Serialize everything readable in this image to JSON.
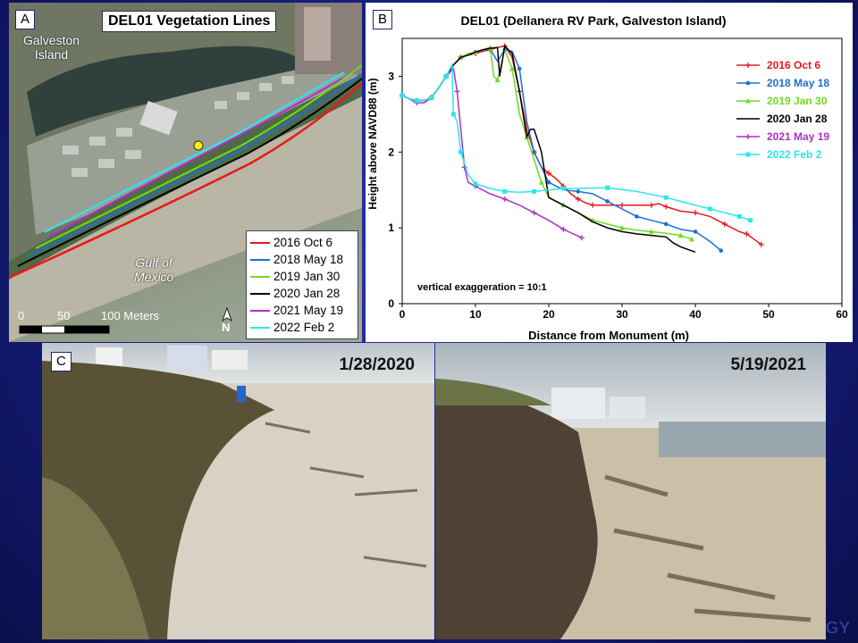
{
  "panel_a": {
    "tag": "A",
    "title": "DEL01 Vegetation Lines",
    "labels": {
      "city": "Galveston",
      "island": "Island",
      "gulf": "Gulf of",
      "mexico": "Mexico"
    },
    "scale": {
      "zero": "0",
      "fifty": "50",
      "hundred": "100 Meters"
    },
    "north": "N",
    "legend": [
      {
        "label": "2016 Oct 6",
        "color": "#e8191b"
      },
      {
        "label": "2018 May 18",
        "color": "#1f6fd1"
      },
      {
        "label": "2019 Jan 30",
        "color": "#6edc22"
      },
      {
        "label": "2020 Jan 28",
        "color": "#000000"
      },
      {
        "label": "2021 May 19",
        "color": "#b12fc9"
      },
      {
        "label": "2022 Feb 2",
        "color": "#2ce6f0"
      }
    ]
  },
  "chart_data": {
    "type": "line",
    "tag": "B",
    "title": "DEL01 (Dellanera RV Park, Galveston Island)",
    "xlabel": "Distance from Monument (m)",
    "ylabel": "Height above NAVD88 (m)",
    "xlim": [
      0,
      60
    ],
    "ylim": [
      0,
      3.5
    ],
    "xticks": [
      0,
      10,
      20,
      30,
      40,
      50,
      60
    ],
    "yticks": [
      0,
      1,
      2,
      3
    ],
    "annotation": "vertical exaggeration = 10:1",
    "legend_position": "top-right",
    "series": [
      {
        "name": "2016 Oct 6",
        "color": "#e8191b",
        "marker": "plus",
        "points": [
          [
            0,
            2.75
          ],
          [
            1,
            2.7
          ],
          [
            2,
            2.68
          ],
          [
            3,
            2.68
          ],
          [
            4,
            2.72
          ],
          [
            5,
            2.85
          ],
          [
            6,
            3.0
          ],
          [
            7,
            3.15
          ],
          [
            8,
            3.25
          ],
          [
            9,
            3.28
          ],
          [
            10,
            3.3
          ],
          [
            11,
            3.33
          ],
          [
            12,
            3.35
          ],
          [
            13,
            3.38
          ],
          [
            14,
            3.4
          ],
          [
            15,
            3.25
          ],
          [
            16,
            2.8
          ],
          [
            17,
            2.3
          ],
          [
            18,
            2.0
          ],
          [
            19,
            1.8
          ],
          [
            20,
            1.72
          ],
          [
            21,
            1.65
          ],
          [
            22,
            1.55
          ],
          [
            23,
            1.45
          ],
          [
            24,
            1.38
          ],
          [
            25,
            1.33
          ],
          [
            26,
            1.3
          ],
          [
            28,
            1.3
          ],
          [
            30,
            1.3
          ],
          [
            32,
            1.3
          ],
          [
            34,
            1.3
          ],
          [
            35,
            1.32
          ],
          [
            36,
            1.28
          ],
          [
            38,
            1.22
          ],
          [
            40,
            1.2
          ],
          [
            42,
            1.15
          ],
          [
            44,
            1.05
          ],
          [
            46,
            0.95
          ],
          [
            47,
            0.92
          ],
          [
            49,
            0.78
          ]
        ]
      },
      {
        "name": "2018 May 18",
        "color": "#1f6fd1",
        "marker": "circle",
        "points": [
          [
            0,
            2.75
          ],
          [
            1,
            2.7
          ],
          [
            2,
            2.68
          ],
          [
            3,
            2.68
          ],
          [
            4,
            2.72
          ],
          [
            5,
            2.85
          ],
          [
            6,
            3.0
          ],
          [
            7,
            3.15
          ],
          [
            8,
            3.25
          ],
          [
            9,
            3.28
          ],
          [
            10,
            3.32
          ],
          [
            11,
            3.35
          ],
          [
            12,
            3.36
          ],
          [
            13,
            3.2
          ],
          [
            14,
            3.35
          ],
          [
            15,
            3.33
          ],
          [
            16,
            3.1
          ],
          [
            17,
            2.4
          ],
          [
            18,
            2.0
          ],
          [
            19,
            1.8
          ],
          [
            20,
            1.6
          ],
          [
            22,
            1.5
          ],
          [
            24,
            1.48
          ],
          [
            26,
            1.45
          ],
          [
            28,
            1.35
          ],
          [
            30,
            1.25
          ],
          [
            32,
            1.15
          ],
          [
            34,
            1.1
          ],
          [
            36,
            1.05
          ],
          [
            38,
            0.98
          ],
          [
            40,
            0.95
          ],
          [
            42,
            0.82
          ],
          [
            43.5,
            0.7
          ]
        ]
      },
      {
        "name": "2019 Jan 30",
        "color": "#6edc22",
        "marker": "triangle",
        "points": [
          [
            0,
            2.75
          ],
          [
            1,
            2.7
          ],
          [
            2,
            2.68
          ],
          [
            3,
            2.68
          ],
          [
            4,
            2.72
          ],
          [
            5,
            2.85
          ],
          [
            6,
            3.0
          ],
          [
            7,
            3.15
          ],
          [
            8,
            3.25
          ],
          [
            9,
            3.3
          ],
          [
            10,
            3.32
          ],
          [
            11,
            3.35
          ],
          [
            12,
            3.38
          ],
          [
            12.5,
            3.0
          ],
          [
            13,
            2.95
          ],
          [
            14,
            3.35
          ],
          [
            15,
            3.1
          ],
          [
            16,
            2.5
          ],
          [
            17,
            2.2
          ],
          [
            18,
            1.9
          ],
          [
            19,
            1.6
          ],
          [
            20,
            1.4
          ],
          [
            22,
            1.3
          ],
          [
            24,
            1.2
          ],
          [
            26,
            1.1
          ],
          [
            28,
            1.05
          ],
          [
            30,
            1.0
          ],
          [
            32,
            0.97
          ],
          [
            34,
            0.95
          ],
          [
            36,
            0.93
          ],
          [
            38,
            0.9
          ],
          [
            39.5,
            0.85
          ]
        ]
      },
      {
        "name": "2020 Jan 28",
        "color": "#000000",
        "marker": "none",
        "points": [
          [
            0,
            2.75
          ],
          [
            1,
            2.7
          ],
          [
            2,
            2.68
          ],
          [
            3,
            2.68
          ],
          [
            4,
            2.72
          ],
          [
            5,
            2.85
          ],
          [
            6,
            3.0
          ],
          [
            7,
            3.15
          ],
          [
            8,
            3.25
          ],
          [
            9,
            3.28
          ],
          [
            10,
            3.32
          ],
          [
            11,
            3.35
          ],
          [
            12,
            3.37
          ],
          [
            13,
            3.38
          ],
          [
            13.3,
            3.0
          ],
          [
            14,
            3.4
          ],
          [
            15,
            3.3
          ],
          [
            16,
            2.8
          ],
          [
            17,
            2.2
          ],
          [
            17.5,
            2.3
          ],
          [
            18,
            2.3
          ],
          [
            19,
            2.0
          ],
          [
            20,
            1.4
          ],
          [
            22,
            1.3
          ],
          [
            24,
            1.2
          ],
          [
            26,
            1.08
          ],
          [
            28,
            1.0
          ],
          [
            30,
            0.95
          ],
          [
            32,
            0.92
          ],
          [
            34,
            0.9
          ],
          [
            36,
            0.88
          ],
          [
            37,
            0.8
          ],
          [
            38,
            0.75
          ],
          [
            40,
            0.68
          ]
        ]
      },
      {
        "name": "2021 May 19",
        "color": "#b12fc9",
        "marker": "plus",
        "points": [
          [
            0,
            2.75
          ],
          [
            1,
            2.7
          ],
          [
            2,
            2.65
          ],
          [
            3,
            2.65
          ],
          [
            4,
            2.72
          ],
          [
            5,
            2.85
          ],
          [
            6,
            3.0
          ],
          [
            7,
            3.1
          ],
          [
            7.5,
            2.8
          ],
          [
            8,
            2.3
          ],
          [
            8.5,
            1.8
          ],
          [
            9,
            1.6
          ],
          [
            10,
            1.55
          ],
          [
            12,
            1.45
          ],
          [
            14,
            1.38
          ],
          [
            16,
            1.3
          ],
          [
            18,
            1.2
          ],
          [
            20,
            1.1
          ],
          [
            22,
            0.98
          ],
          [
            24.5,
            0.87
          ]
        ]
      },
      {
        "name": "2022 Feb 2",
        "color": "#2ce6f0",
        "marker": "square",
        "points": [
          [
            0,
            2.75
          ],
          [
            1,
            2.7
          ],
          [
            2,
            2.68
          ],
          [
            3,
            2.68
          ],
          [
            4,
            2.72
          ],
          [
            5,
            2.85
          ],
          [
            6,
            3.0
          ],
          [
            6.8,
            3.15
          ],
          [
            7,
            2.5
          ],
          [
            7.5,
            2.4
          ],
          [
            8,
            2.0
          ],
          [
            9,
            1.7
          ],
          [
            10,
            1.58
          ],
          [
            12,
            1.52
          ],
          [
            14,
            1.48
          ],
          [
            16,
            1.47
          ],
          [
            18,
            1.48
          ],
          [
            20,
            1.5
          ],
          [
            22,
            1.52
          ],
          [
            24,
            1.52
          ],
          [
            28,
            1.53
          ],
          [
            32,
            1.48
          ],
          [
            36,
            1.4
          ],
          [
            40,
            1.3
          ],
          [
            42,
            1.25
          ],
          [
            44,
            1.2
          ],
          [
            46,
            1.15
          ],
          [
            47.5,
            1.1
          ]
        ]
      }
    ]
  },
  "panel_c": {
    "tag": "C",
    "photo_left_date": "1/28/2020",
    "photo_right_date": "5/19/2021",
    "corner_text": "GY"
  }
}
